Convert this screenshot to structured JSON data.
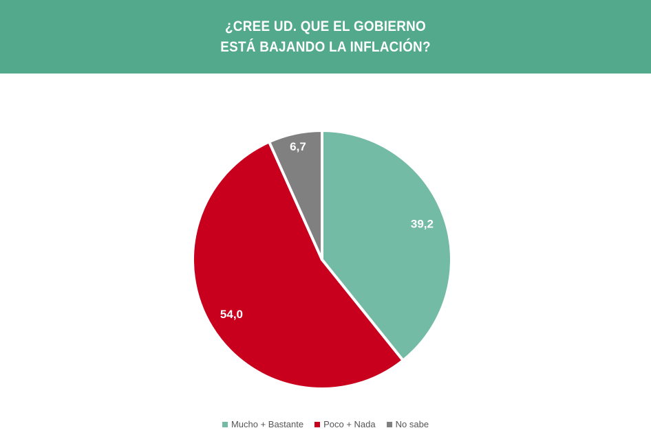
{
  "chart_data": {
    "type": "pie",
    "title": "¿CREE UD. QUE EL GOBIERNO ESTÁ BAJANDO LA INFLACIÓN?",
    "categories": [
      "Mucho + Bastante",
      "Poco + Nada",
      "No sabe"
    ],
    "values": [
      39.2,
      54.0,
      6.7
    ],
    "value_labels": [
      "39,2",
      "54,0",
      "6,7"
    ],
    "colors": [
      "#74bba5",
      "#c8001e",
      "#808080"
    ],
    "legend": "bottom"
  }
}
